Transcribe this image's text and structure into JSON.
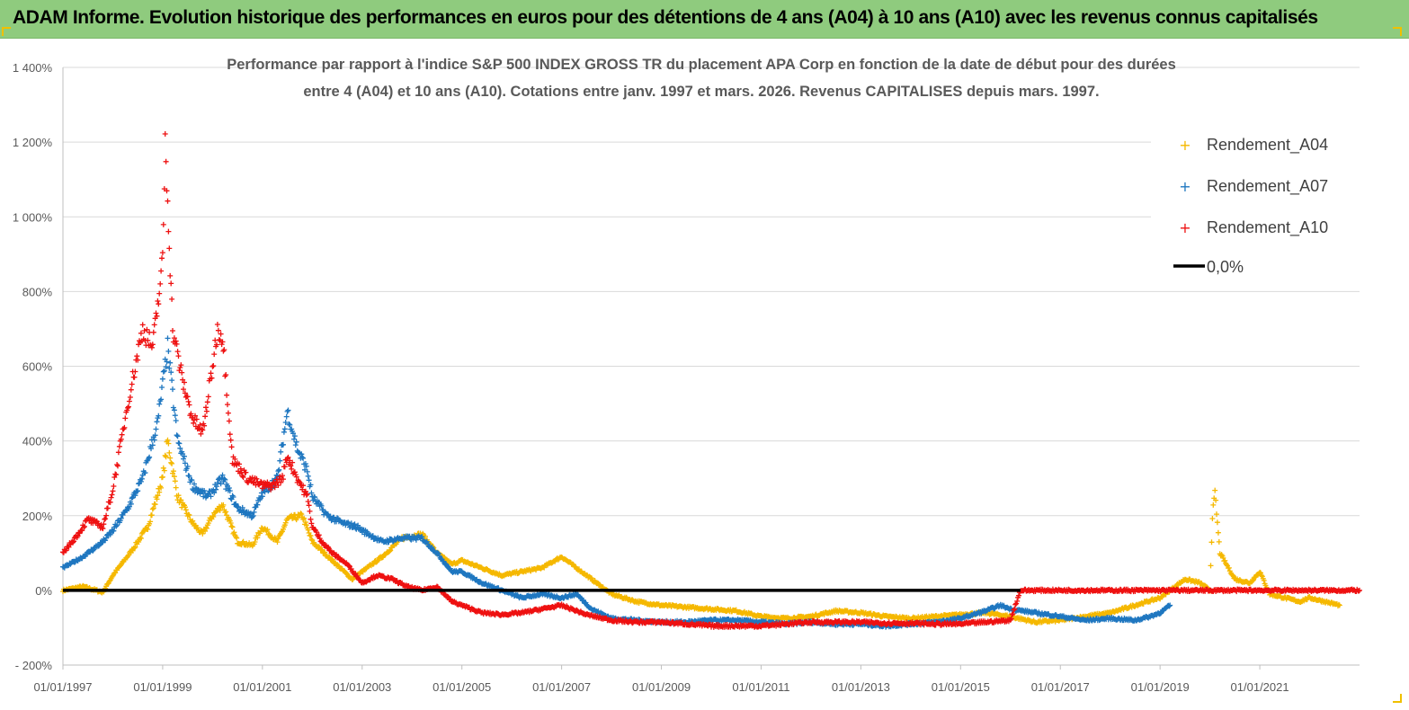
{
  "header": {
    "title": "ADAM Informe. Evolution historique des performances en euros pour des détentions de 4 ans (A04) à 10 ans (A10) avec les revenus connus capitalisés"
  },
  "colors": {
    "header_bg": "#8fcb7e",
    "series_a04": "#f5b800",
    "series_a07": "#1f77c0",
    "series_a10": "#ee1111",
    "zero_line": "#000000",
    "grid": "#d9d9d9"
  },
  "chart_data": {
    "type": "scatter",
    "title_lines": [
      "Performance par rapport à l'indice S&P 500 INDEX GROSS TR  du placement APA Corp en fonction de la date de début pour des durées",
      "entre 4 (A04) et 10 ans (A10). Cotations entre janv. 1997 et mars. 2026. Revenus CAPITALISES depuis mars. 1997."
    ],
    "ylim": [
      -200,
      1400
    ],
    "xlim": [
      1997.0,
      2023.0
    ],
    "y_ticks": [
      {
        "value": 1400,
        "label": "1 400%"
      },
      {
        "value": 1200,
        "label": "1 200%"
      },
      {
        "value": 1000,
        "label": "1 000%"
      },
      {
        "value": 800,
        "label": "800%"
      },
      {
        "value": 600,
        "label": "600%"
      },
      {
        "value": 400,
        "label": "400%"
      },
      {
        "value": 200,
        "label": "200%"
      },
      {
        "value": 0,
        "label": "0%"
      },
      {
        "value": -200,
        "label": "- 200%"
      }
    ],
    "x_ticks": [
      {
        "value": 1997,
        "label": "01/01/1997"
      },
      {
        "value": 1999,
        "label": "01/01/1999"
      },
      {
        "value": 2001,
        "label": "01/01/2001"
      },
      {
        "value": 2003,
        "label": "01/01/2003"
      },
      {
        "value": 2005,
        "label": "01/01/2005"
      },
      {
        "value": 2007,
        "label": "01/01/2007"
      },
      {
        "value": 2009,
        "label": "01/01/2009"
      },
      {
        "value": 2011,
        "label": "01/01/2011"
      },
      {
        "value": 2013,
        "label": "01/01/2013"
      },
      {
        "value": 2015,
        "label": "01/01/2015"
      },
      {
        "value": 2017,
        "label": "01/01/2017"
      },
      {
        "value": 2019,
        "label": "01/01/2019"
      },
      {
        "value": 2021,
        "label": "01/01/2021"
      }
    ],
    "grid": true,
    "legend_position": "top-right",
    "legend": [
      {
        "label": "Rendement_A04",
        "marker": "plus",
        "color": "#f5b800"
      },
      {
        "label": "Rendement_A07",
        "marker": "plus",
        "color": "#1f77c0"
      },
      {
        "label": "Rendement_A10",
        "marker": "plus",
        "color": "#ee1111"
      },
      {
        "label": "0,0%",
        "marker": "line",
        "color": "#000000"
      }
    ],
    "series": [
      {
        "name": "Rendement_A04",
        "color": "#f5b800",
        "points": [
          [
            1997.0,
            0
          ],
          [
            1997.4,
            10
          ],
          [
            1997.8,
            -5
          ],
          [
            1998.0,
            40
          ],
          [
            1998.4,
            110
          ],
          [
            1998.7,
            170
          ],
          [
            1999.0,
            300
          ],
          [
            1999.1,
            400
          ],
          [
            1999.3,
            250
          ],
          [
            1999.6,
            180
          ],
          [
            1999.8,
            150
          ],
          [
            2000.0,
            200
          ],
          [
            2000.2,
            230
          ],
          [
            2000.5,
            130
          ],
          [
            2000.8,
            120
          ],
          [
            2001.0,
            170
          ],
          [
            2001.3,
            130
          ],
          [
            2001.5,
            190
          ],
          [
            2001.8,
            200
          ],
          [
            2002.0,
            130
          ],
          [
            2002.4,
            80
          ],
          [
            2002.8,
            30
          ],
          [
            2003.0,
            50
          ],
          [
            2003.4,
            90
          ],
          [
            2003.8,
            140
          ],
          [
            2004.2,
            150
          ],
          [
            2004.5,
            100
          ],
          [
            2004.8,
            70
          ],
          [
            2005.0,
            80
          ],
          [
            2005.4,
            60
          ],
          [
            2005.8,
            40
          ],
          [
            2006.2,
            50
          ],
          [
            2006.6,
            60
          ],
          [
            2007.0,
            90
          ],
          [
            2007.3,
            60
          ],
          [
            2007.6,
            30
          ],
          [
            2008.0,
            -10
          ],
          [
            2008.5,
            -30
          ],
          [
            2009.0,
            -40
          ],
          [
            2009.5,
            -45
          ],
          [
            2010.0,
            -50
          ],
          [
            2010.5,
            -55
          ],
          [
            2011.0,
            -70
          ],
          [
            2011.5,
            -75
          ],
          [
            2012.0,
            -70
          ],
          [
            2012.5,
            -55
          ],
          [
            2013.0,
            -60
          ],
          [
            2013.5,
            -70
          ],
          [
            2014.0,
            -75
          ],
          [
            2014.5,
            -70
          ],
          [
            2015.0,
            -65
          ],
          [
            2015.5,
            -60
          ],
          [
            2016.0,
            -70
          ],
          [
            2016.5,
            -85
          ],
          [
            2017.0,
            -80
          ],
          [
            2017.5,
            -70
          ],
          [
            2018.0,
            -60
          ],
          [
            2018.5,
            -40
          ],
          [
            2019.0,
            -20
          ],
          [
            2019.3,
            10
          ],
          [
            2019.5,
            30
          ],
          [
            2019.8,
            20
          ],
          [
            2020.0,
            0
          ],
          [
            2020.05,
            200
          ],
          [
            2020.1,
            260
          ],
          [
            2020.2,
            100
          ],
          [
            2020.5,
            30
          ],
          [
            2020.8,
            20
          ],
          [
            2021.0,
            50
          ],
          [
            2021.2,
            -10
          ],
          [
            2021.5,
            -20
          ],
          [
            2021.8,
            -30
          ],
          [
            2022.0,
            -20
          ],
          [
            2022.3,
            -30
          ],
          [
            2022.6,
            -40
          ]
        ]
      },
      {
        "name": "Rendement_A07",
        "color": "#1f77c0",
        "points": [
          [
            1997.0,
            60
          ],
          [
            1997.4,
            90
          ],
          [
            1997.8,
            130
          ],
          [
            1998.0,
            160
          ],
          [
            1998.3,
            220
          ],
          [
            1998.6,
            300
          ],
          [
            1998.9,
            450
          ],
          [
            1999.0,
            550
          ],
          [
            1999.1,
            650
          ],
          [
            1999.3,
            400
          ],
          [
            1999.6,
            280
          ],
          [
            1999.9,
            250
          ],
          [
            2000.2,
            300
          ],
          [
            2000.5,
            220
          ],
          [
            2000.8,
            200
          ],
          [
            2001.0,
            260
          ],
          [
            2001.3,
            300
          ],
          [
            2001.5,
            480
          ],
          [
            2001.7,
            380
          ],
          [
            2001.9,
            320
          ],
          [
            2002.0,
            250
          ],
          [
            2002.3,
            200
          ],
          [
            2002.6,
            180
          ],
          [
            2002.9,
            170
          ],
          [
            2003.0,
            160
          ],
          [
            2003.4,
            130
          ],
          [
            2003.8,
            140
          ],
          [
            2004.2,
            140
          ],
          [
            2004.5,
            100
          ],
          [
            2004.8,
            50
          ],
          [
            2005.0,
            50
          ],
          [
            2005.4,
            20
          ],
          [
            2005.8,
            0
          ],
          [
            2006.2,
            -20
          ],
          [
            2006.6,
            -10
          ],
          [
            2007.0,
            -20
          ],
          [
            2007.3,
            -10
          ],
          [
            2007.6,
            -50
          ],
          [
            2008.0,
            -75
          ],
          [
            2008.5,
            -80
          ],
          [
            2009.0,
            -85
          ],
          [
            2009.5,
            -85
          ],
          [
            2010.0,
            -80
          ],
          [
            2010.5,
            -80
          ],
          [
            2011.0,
            -85
          ],
          [
            2011.5,
            -90
          ],
          [
            2012.0,
            -85
          ],
          [
            2012.5,
            -90
          ],
          [
            2013.0,
            -90
          ],
          [
            2013.5,
            -95
          ],
          [
            2014.0,
            -90
          ],
          [
            2014.5,
            -85
          ],
          [
            2015.0,
            -75
          ],
          [
            2015.5,
            -55
          ],
          [
            2015.8,
            -40
          ],
          [
            2016.0,
            -50
          ],
          [
            2016.5,
            -60
          ],
          [
            2017.0,
            -70
          ],
          [
            2017.5,
            -80
          ],
          [
            2018.0,
            -75
          ],
          [
            2018.5,
            -80
          ],
          [
            2018.8,
            -70
          ],
          [
            2019.0,
            -60
          ],
          [
            2019.2,
            -40
          ]
        ]
      },
      {
        "name": "Rendement_A10",
        "color": "#ee1111",
        "points": [
          [
            1997.0,
            100
          ],
          [
            1997.3,
            150
          ],
          [
            1997.5,
            190
          ],
          [
            1997.8,
            170
          ],
          [
            1998.0,
            270
          ],
          [
            1998.3,
            500
          ],
          [
            1998.6,
            700
          ],
          [
            1998.8,
            650
          ],
          [
            1999.0,
            880
          ],
          [
            1999.05,
            1200
          ],
          [
            1999.1,
            1050
          ],
          [
            1999.2,
            700
          ],
          [
            1999.4,
            560
          ],
          [
            1999.6,
            460
          ],
          [
            1999.8,
            420
          ],
          [
            2000.0,
            600
          ],
          [
            2000.1,
            700
          ],
          [
            2000.2,
            680
          ],
          [
            2000.4,
            350
          ],
          [
            2000.7,
            300
          ],
          [
            2001.0,
            280
          ],
          [
            2001.2,
            280
          ],
          [
            2001.4,
            300
          ],
          [
            2001.5,
            360
          ],
          [
            2001.7,
            300
          ],
          [
            2001.9,
            250
          ],
          [
            2002.0,
            170
          ],
          [
            2002.2,
            130
          ],
          [
            2002.4,
            100
          ],
          [
            2002.7,
            70
          ],
          [
            2003.0,
            20
          ],
          [
            2003.3,
            40
          ],
          [
            2003.6,
            30
          ],
          [
            2003.9,
            10
          ],
          [
            2004.2,
            0
          ],
          [
            2004.5,
            10
          ],
          [
            2004.8,
            -30
          ],
          [
            2005.0,
            -40
          ],
          [
            2005.4,
            -60
          ],
          [
            2005.8,
            -65
          ],
          [
            2006.2,
            -60
          ],
          [
            2006.6,
            -50
          ],
          [
            2007.0,
            -40
          ],
          [
            2007.5,
            -65
          ],
          [
            2008.0,
            -80
          ],
          [
            2008.5,
            -85
          ],
          [
            2009.0,
            -85
          ],
          [
            2009.5,
            -90
          ],
          [
            2010.0,
            -95
          ],
          [
            2010.5,
            -95
          ],
          [
            2011.0,
            -95
          ],
          [
            2011.5,
            -90
          ],
          [
            2012.0,
            -85
          ],
          [
            2012.5,
            -85
          ],
          [
            2013.0,
            -85
          ],
          [
            2013.5,
            -88
          ],
          [
            2014.0,
            -88
          ],
          [
            2014.5,
            -90
          ],
          [
            2015.0,
            -90
          ],
          [
            2015.5,
            -85
          ],
          [
            2016.0,
            -80
          ],
          [
            2016.2,
            0
          ],
          [
            2017.0,
            0
          ],
          [
            2018.0,
            0
          ],
          [
            2019.0,
            0
          ],
          [
            2020.0,
            0
          ],
          [
            2021.0,
            0
          ],
          [
            2022.0,
            0
          ],
          [
            2023.0,
            0
          ]
        ]
      }
    ],
    "reference_lines": [
      {
        "name": "0,0%",
        "y": 0,
        "x_from": 1997.0,
        "x_to": 2016.2,
        "color": "#000000"
      }
    ]
  }
}
